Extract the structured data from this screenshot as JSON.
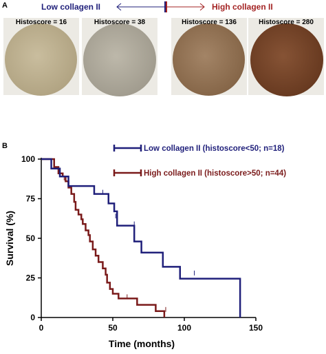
{
  "panel_a": {
    "letter": "A",
    "low_label": "Low collagen II",
    "high_label": "High collagen II",
    "low_color": "#1f1f7a",
    "high_color": "#a32323",
    "tiles": [
      {
        "label": "Histoscore = 16",
        "core_color": "#b9ad8e"
      },
      {
        "label": "Histoscore = 38",
        "core_color": "#a9a496"
      },
      {
        "label": "Histoscore = 136",
        "core_color": "#8f6d4d"
      },
      {
        "label": "Histoscore = 280",
        "core_color": "#6e3f22"
      }
    ]
  },
  "panel_b": {
    "letter": "B"
  },
  "chart_data": {
    "type": "line",
    "xlabel": "Time (months)",
    "ylabel": "Survival (%)",
    "xlim": [
      0,
      150
    ],
    "ylim": [
      0,
      100
    ],
    "xticks": [
      0,
      50,
      100,
      150
    ],
    "yticks": [
      0,
      25,
      50,
      75,
      100
    ],
    "grid": false,
    "legend_position": "top-right",
    "series": [
      {
        "name": "Low collagen II (histoscore<50; n=18)",
        "color": "#1f1f7a",
        "steps": [
          [
            0,
            100
          ],
          [
            7,
            100
          ],
          [
            7,
            94
          ],
          [
            13,
            94
          ],
          [
            13,
            89
          ],
          [
            19,
            89
          ],
          [
            19,
            83
          ],
          [
            37,
            83
          ],
          [
            37,
            78
          ],
          [
            47,
            78
          ],
          [
            47,
            72
          ],
          [
            51,
            72
          ],
          [
            51,
            67
          ],
          [
            53,
            67
          ],
          [
            53,
            58
          ],
          [
            65,
            58
          ],
          [
            65,
            48
          ],
          [
            70,
            48
          ],
          [
            70,
            41
          ],
          [
            85,
            41
          ],
          [
            85,
            32
          ],
          [
            97,
            32
          ],
          [
            97,
            24.5
          ],
          [
            139,
            24.5
          ],
          [
            139,
            0
          ]
        ],
        "censored": [
          [
            43,
            78
          ],
          [
            52,
            63
          ],
          [
            65,
            58
          ],
          [
            107,
            27
          ]
        ]
      },
      {
        "name": "High collagen II (histoscore>50; n=44)",
        "color": "#7a1a1a",
        "steps": [
          [
            0,
            100
          ],
          [
            9,
            100
          ],
          [
            9,
            95
          ],
          [
            12,
            95
          ],
          [
            12,
            91
          ],
          [
            15,
            91
          ],
          [
            15,
            89
          ],
          [
            17,
            89
          ],
          [
            17,
            86
          ],
          [
            19,
            86
          ],
          [
            19,
            82
          ],
          [
            21,
            82
          ],
          [
            21,
            78
          ],
          [
            23,
            78
          ],
          [
            23,
            73
          ],
          [
            24,
            73
          ],
          [
            24,
            68
          ],
          [
            26,
            68
          ],
          [
            26,
            65
          ],
          [
            28,
            65
          ],
          [
            28,
            62
          ],
          [
            29,
            62
          ],
          [
            29,
            59
          ],
          [
            31,
            59
          ],
          [
            31,
            55
          ],
          [
            33,
            55
          ],
          [
            33,
            52
          ],
          [
            34,
            52
          ],
          [
            34,
            48
          ],
          [
            36,
            48
          ],
          [
            36,
            43
          ],
          [
            38,
            43
          ],
          [
            38,
            39
          ],
          [
            40,
            39
          ],
          [
            40,
            35
          ],
          [
            43,
            35
          ],
          [
            43,
            31
          ],
          [
            45,
            31
          ],
          [
            45,
            27
          ],
          [
            46,
            27
          ],
          [
            46,
            22
          ],
          [
            48,
            22
          ],
          [
            48,
            18
          ],
          [
            50,
            18
          ],
          [
            50,
            15
          ],
          [
            54,
            15
          ],
          [
            54,
            12
          ],
          [
            67,
            12
          ],
          [
            67,
            8
          ],
          [
            80,
            8
          ],
          [
            80,
            4
          ],
          [
            86,
            4
          ],
          [
            86,
            0
          ]
        ],
        "censored": [
          [
            16,
            87
          ],
          [
            60,
            12
          ],
          [
            87,
            4
          ]
        ]
      }
    ]
  }
}
